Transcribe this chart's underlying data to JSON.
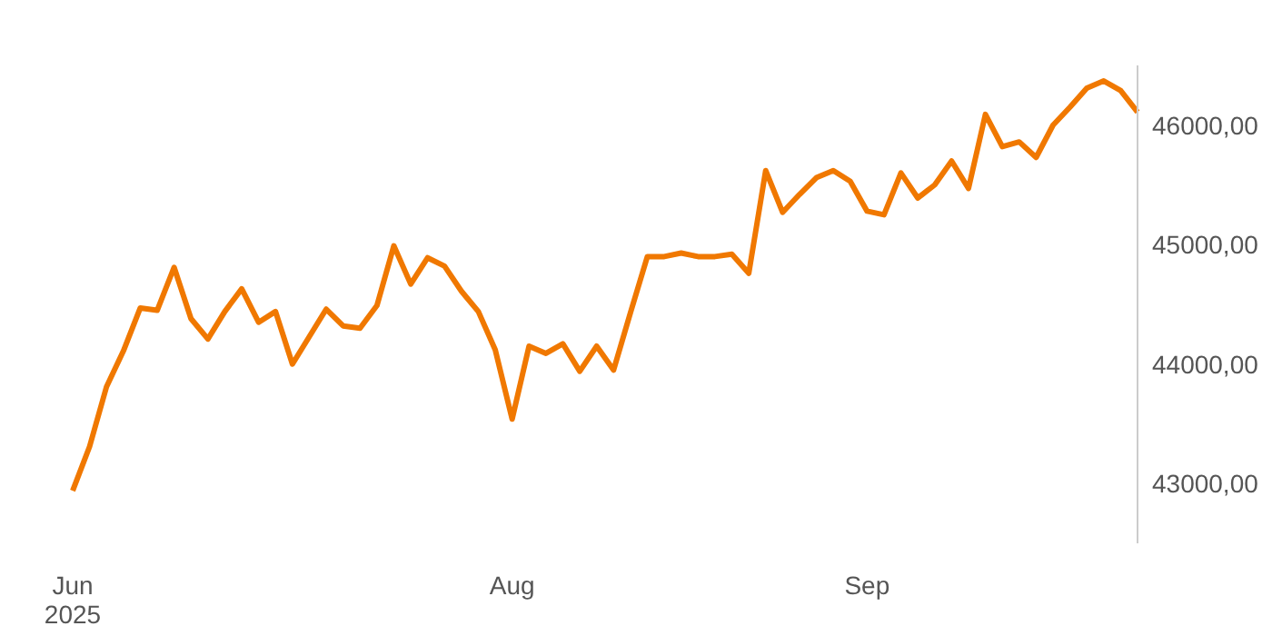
{
  "chart_data": {
    "type": "line",
    "categories": [
      "Jun\n2025",
      null,
      null,
      null,
      null,
      null,
      null,
      null,
      null,
      null,
      null,
      null,
      null,
      null,
      null,
      null,
      null,
      null,
      null,
      null,
      null,
      null,
      null,
      null,
      null,
      null,
      "Aug",
      null,
      null,
      null,
      null,
      null,
      null,
      null,
      null,
      null,
      null,
      null,
      null,
      null,
      null,
      null,
      null,
      null,
      null,
      null,
      null,
      "Sep",
      null,
      null,
      null,
      null,
      null,
      null,
      null,
      null,
      null,
      null,
      null,
      null,
      null,
      null,
      null,
      null
    ],
    "series": [
      {
        "color": "#f07800",
        "values": [
          42940,
          43310,
          43810,
          44110,
          44470,
          44450,
          44810,
          44380,
          44210,
          44440,
          44630,
          44350,
          44440,
          44000,
          44230,
          44460,
          44320,
          44300,
          44490,
          44990,
          44670,
          44890,
          44820,
          44610,
          44440,
          44120,
          43540,
          44150,
          44090,
          44170,
          43940,
          44150,
          43950,
          44430,
          44900,
          44900,
          44930,
          44900,
          44900,
          44920,
          44760,
          45620,
          45270,
          45420,
          45560,
          45620,
          45530,
          45280,
          45250,
          45600,
          45390,
          45500,
          45700,
          45470,
          46090,
          45820,
          45860,
          45730,
          46000,
          46150,
          46310,
          46370,
          46290,
          46110
        ]
      }
    ],
    "ylim": [
      42500,
      46500
    ],
    "yticks": [
      {
        "value": 43000,
        "label": "43000,00"
      },
      {
        "value": 44000,
        "label": "44000,00"
      },
      {
        "value": 45000,
        "label": "45000,00"
      },
      {
        "value": 46000,
        "label": "46000,00"
      }
    ],
    "grid": false,
    "legend": false
  }
}
